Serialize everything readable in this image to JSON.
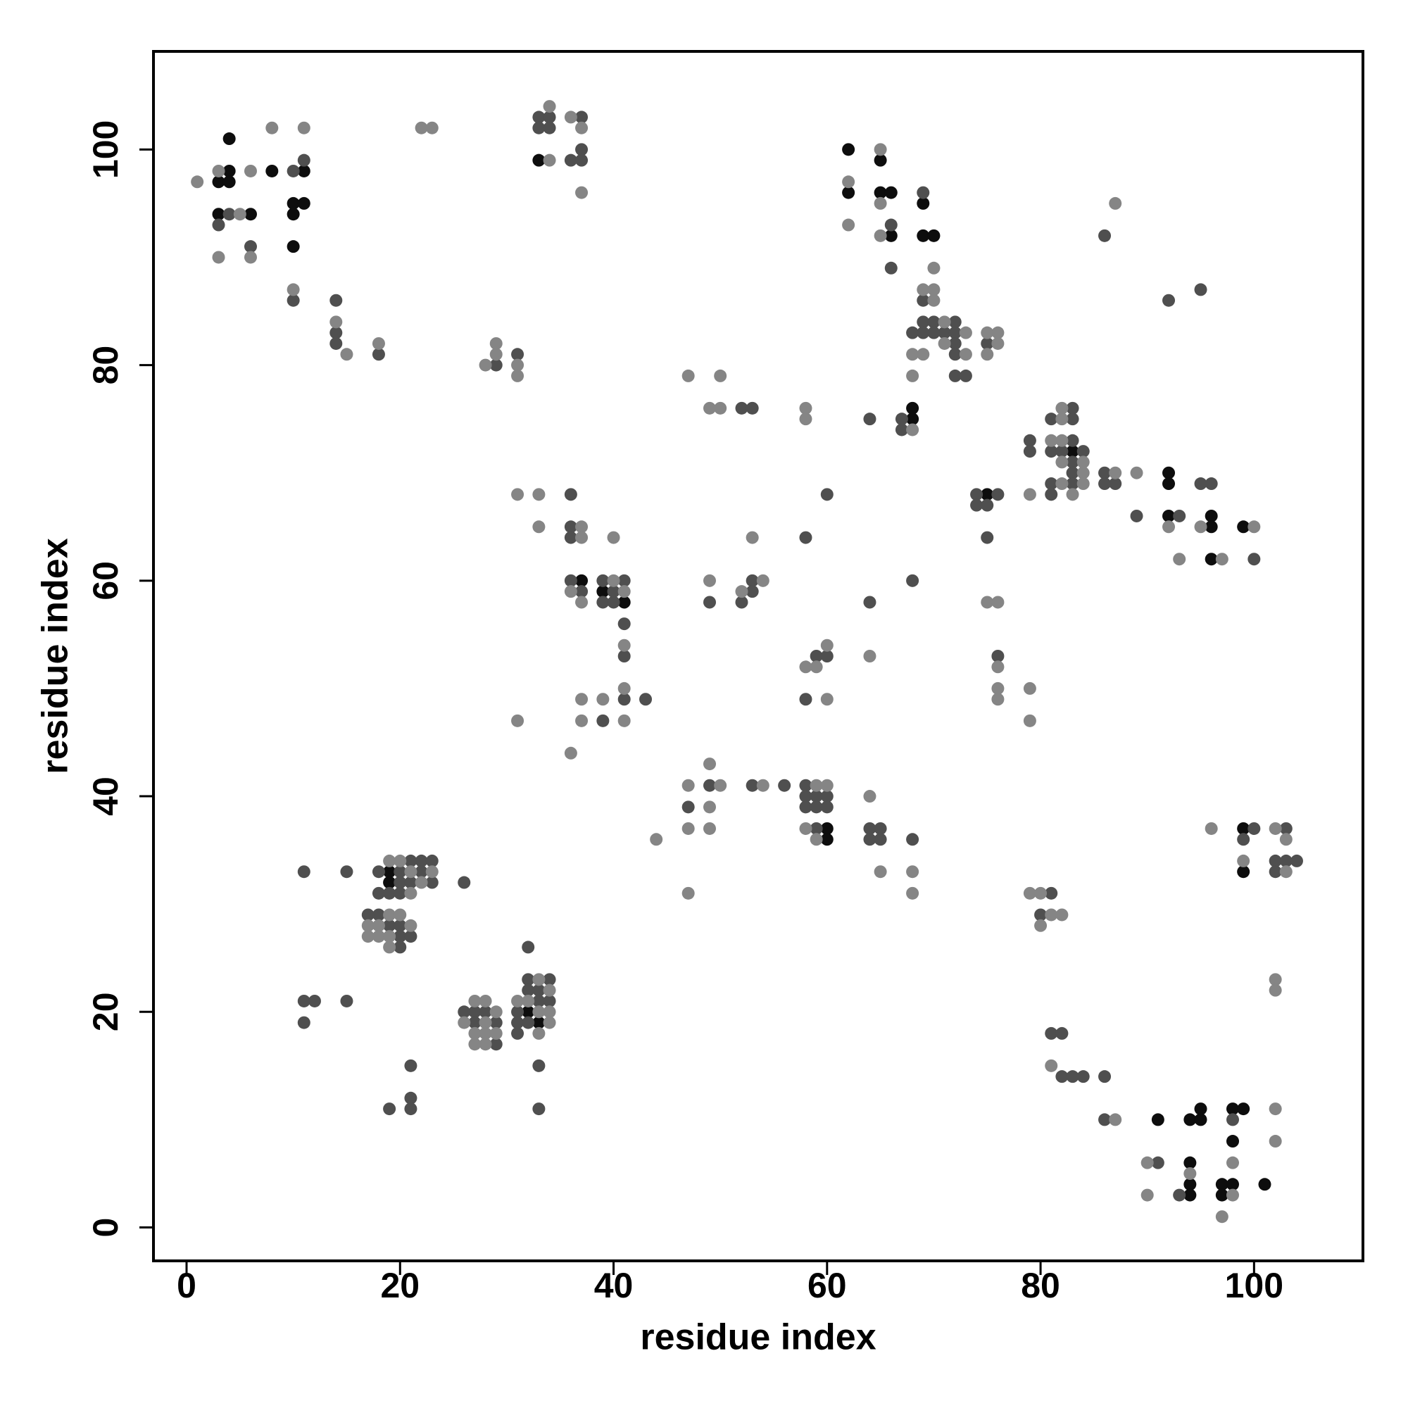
{
  "chart_data": {
    "type": "scatter",
    "xlabel": "residue index",
    "ylabel": "residue index",
    "xlim": [
      -3.1,
      110.2
    ],
    "ylim": [
      -3.1,
      109.1
    ],
    "xticks": [
      0,
      20,
      40,
      60,
      80,
      100
    ],
    "yticks": [
      0,
      20,
      40,
      60,
      80,
      100
    ],
    "grid": false,
    "series": [
      {
        "color": "#0d0d0d",
        "x": [
          3,
          3,
          4,
          4,
          4,
          6,
          8,
          10,
          10,
          10,
          11,
          11,
          33,
          62,
          62,
          65,
          65,
          66,
          66,
          69,
          69,
          70,
          68,
          68,
          83,
          92,
          92,
          92,
          96,
          96,
          96,
          99,
          75,
          37,
          39,
          41,
          60,
          60,
          99,
          99,
          91,
          94,
          95,
          95,
          98,
          99,
          98,
          94,
          94,
          94,
          97,
          97,
          98,
          101,
          19,
          19,
          32,
          33
        ],
        "values": [
          97,
          94,
          101,
          98,
          97,
          94,
          98,
          95,
          94,
          91,
          98,
          95,
          99,
          100,
          96,
          99,
          96,
          96,
          92,
          95,
          92,
          92,
          76,
          75,
          72,
          70,
          69,
          66,
          66,
          65,
          62,
          65,
          68,
          60,
          59,
          58,
          37,
          36,
          37,
          33,
          10,
          10,
          10,
          11,
          11,
          11,
          8,
          6,
          4,
          3,
          4,
          3,
          4,
          4,
          33,
          32,
          20,
          19
        ]
      },
      {
        "color": "#4f4f4f",
        "x": [
          3,
          4,
          6,
          10,
          10,
          11,
          14,
          14,
          14,
          18,
          29,
          31,
          33,
          33,
          34,
          34,
          36,
          37,
          37,
          37,
          66,
          66,
          69,
          69,
          69,
          69,
          70,
          70,
          68,
          71,
          72,
          72,
          72,
          72,
          72,
          73,
          75,
          52,
          53,
          64,
          67,
          67,
          79,
          79,
          81,
          81,
          81,
          81,
          82,
          83,
          83,
          83,
          83,
          83,
          83,
          84,
          86,
          86,
          87,
          86,
          89,
          92,
          95,
          93,
          95,
          96,
          100,
          74,
          74,
          75,
          75,
          76,
          36,
          36,
          36,
          36,
          37,
          39,
          39,
          40,
          40,
          41,
          41,
          41,
          41,
          43,
          39,
          49,
          52,
          53,
          53,
          58,
          60,
          64,
          68,
          59,
          60,
          58,
          76,
          47,
          49,
          53,
          56,
          58,
          58,
          58,
          59,
          59,
          59,
          60,
          60,
          64,
          64,
          65,
          65,
          68,
          99,
          100,
          103,
          102,
          103,
          104,
          102,
          81,
          80,
          81,
          82,
          82,
          83,
          84,
          86,
          86,
          98,
          91,
          93,
          11,
          15,
          26,
          18,
          18,
          18,
          17,
          19,
          19,
          20,
          20,
          20,
          20,
          20,
          20,
          21,
          21,
          21,
          22,
          22,
          23,
          23,
          11,
          12,
          11,
          15,
          21,
          21,
          21,
          19,
          26,
          27,
          27,
          28,
          29,
          29,
          32,
          31,
          31,
          31,
          32,
          32,
          32,
          33,
          33,
          34,
          34,
          33,
          33
        ],
        "values": [
          93,
          94,
          91,
          98,
          86,
          99,
          86,
          83,
          82,
          81,
          80,
          81,
          103,
          102,
          103,
          102,
          99,
          103,
          100,
          99,
          93,
          89,
          96,
          86,
          84,
          83,
          84,
          83,
          83,
          83,
          84,
          83,
          82,
          81,
          79,
          79,
          82,
          76,
          76,
          75,
          75,
          74,
          73,
          72,
          75,
          72,
          69,
          68,
          72,
          76,
          75,
          73,
          71,
          70,
          69,
          72,
          70,
          69,
          69,
          92,
          66,
          86,
          87,
          66,
          69,
          69,
          62,
          68,
          67,
          67,
          64,
          68,
          68,
          65,
          64,
          60,
          59,
          60,
          58,
          59,
          58,
          60,
          56,
          53,
          49,
          49,
          47,
          58,
          58,
          60,
          59,
          64,
          68,
          58,
          60,
          53,
          53,
          49,
          53,
          39,
          41,
          41,
          41,
          41,
          40,
          39,
          40,
          39,
          37,
          40,
          39,
          37,
          36,
          37,
          36,
          36,
          36,
          37,
          37,
          34,
          34,
          34,
          33,
          31,
          29,
          18,
          18,
          14,
          14,
          14,
          14,
          10,
          10,
          6,
          3,
          33,
          33,
          32,
          33,
          31,
          29,
          29,
          31,
          28,
          33,
          32,
          31,
          28,
          27,
          26,
          34,
          32,
          27,
          34,
          33,
          34,
          32,
          21,
          21,
          19,
          21,
          15,
          12,
          11,
          11,
          20,
          20,
          19,
          20,
          19,
          17,
          26,
          20,
          19,
          18,
          23,
          22,
          19,
          22,
          21,
          23,
          21,
          15,
          11
        ]
      },
      {
        "color": "#858585",
        "x": [
          1,
          3,
          3,
          5,
          6,
          6,
          8,
          10,
          11,
          14,
          15,
          18,
          22,
          23,
          28,
          29,
          29,
          31,
          31,
          34,
          34,
          36,
          37,
          37,
          62,
          62,
          65,
          65,
          65,
          69,
          69,
          70,
          70,
          70,
          68,
          68,
          71,
          71,
          73,
          73,
          75,
          75,
          76,
          76,
          47,
          50,
          49,
          50,
          58,
          58,
          68,
          79,
          81,
          82,
          82,
          82,
          82,
          82,
          83,
          84,
          84,
          84,
          87,
          87,
          89,
          92,
          93,
          95,
          97,
          100,
          31,
          33,
          33,
          37,
          37,
          36,
          37,
          40,
          40,
          41,
          41,
          41,
          41,
          37,
          37,
          39,
          31,
          36,
          49,
          52,
          53,
          54,
          64,
          58,
          59,
          60,
          60,
          75,
          76,
          76,
          76,
          76,
          79,
          79,
          49,
          47,
          47,
          50,
          49,
          49,
          44,
          47,
          54,
          58,
          59,
          59,
          60,
          64,
          65,
          68,
          68,
          96,
          99,
          102,
          103,
          103,
          79,
          80,
          80,
          81,
          82,
          102,
          102,
          81,
          87,
          102,
          102,
          90,
          90,
          94,
          97,
          98,
          98,
          18,
          18,
          17,
          17,
          19,
          19,
          19,
          19,
          20,
          20,
          21,
          21,
          21,
          22,
          23,
          26,
          27,
          27,
          27,
          28,
          28,
          28,
          28,
          29,
          29,
          31,
          32,
          33,
          33,
          33,
          34,
          34,
          34
        ],
        "values": [
          97,
          98,
          90,
          94,
          98,
          90,
          102,
          87,
          102,
          84,
          81,
          82,
          102,
          102,
          80,
          82,
          81,
          80,
          79,
          104,
          99,
          103,
          102,
          96,
          97,
          93,
          100,
          95,
          92,
          87,
          81,
          89,
          87,
          86,
          81,
          79,
          84,
          82,
          83,
          81,
          83,
          81,
          83,
          82,
          79,
          79,
          76,
          76,
          76,
          75,
          74,
          68,
          73,
          76,
          75,
          73,
          71,
          69,
          68,
          71,
          70,
          69,
          70,
          95,
          70,
          65,
          62,
          65,
          62,
          65,
          68,
          68,
          65,
          65,
          64,
          59,
          58,
          64,
          60,
          59,
          54,
          50,
          47,
          49,
          47,
          49,
          47,
          44,
          60,
          59,
          64,
          60,
          53,
          52,
          52,
          54,
          49,
          58,
          58,
          52,
          50,
          49,
          50,
          47,
          43,
          41,
          37,
          41,
          39,
          37,
          36,
          31,
          41,
          37,
          41,
          36,
          41,
          40,
          33,
          33,
          31,
          37,
          34,
          37,
          36,
          33,
          31,
          31,
          28,
          29,
          29,
          23,
          22,
          15,
          10,
          11,
          8,
          6,
          3,
          5,
          1,
          6,
          3,
          28,
          27,
          28,
          27,
          34,
          29,
          27,
          26,
          34,
          29,
          33,
          31,
          28,
          32,
          33,
          19,
          21,
          18,
          17,
          21,
          19,
          18,
          17,
          20,
          18,
          21,
          21,
          23,
          20,
          18,
          22,
          20,
          19
        ]
      }
    ]
  }
}
